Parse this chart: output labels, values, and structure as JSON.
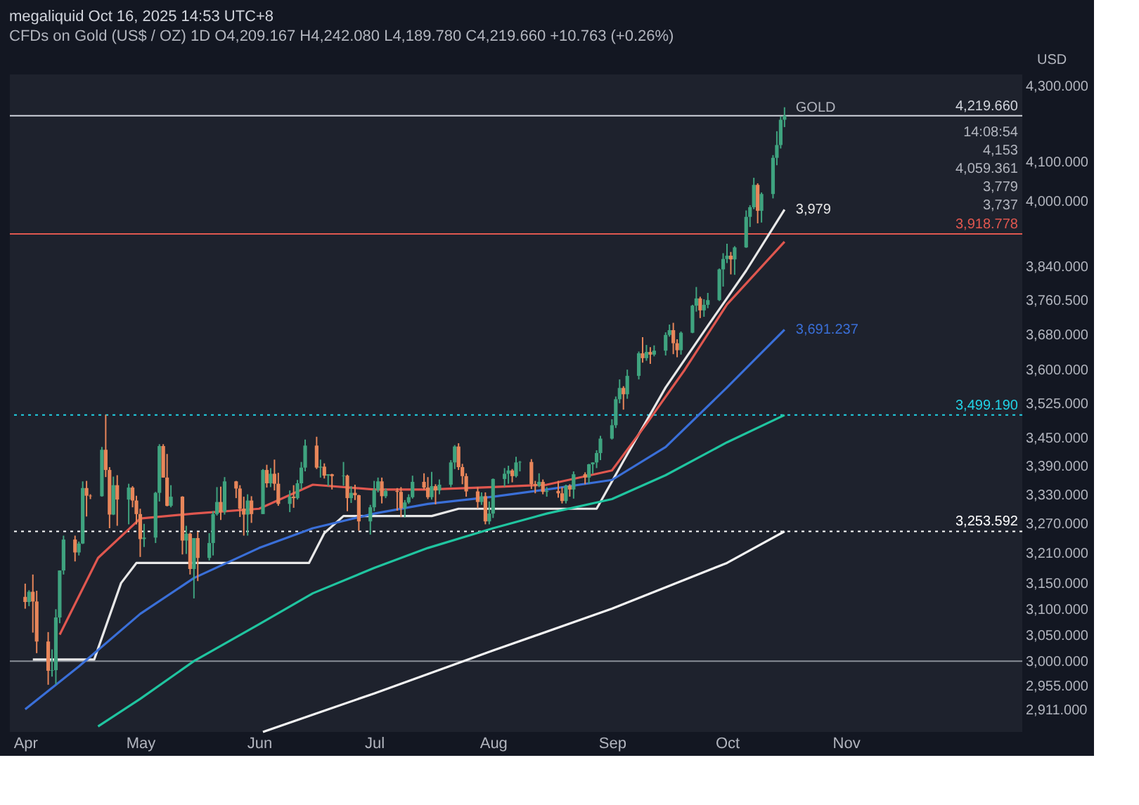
{
  "chart_data": {
    "type": "candlestick",
    "title": "megaliquid Oct 16, 2025 14:53 UTC+8",
    "subtitle": "CFDs on Gold (US$ / OZ)  1D  O4,209.167 H4,242.080 L4,189.780 C4,219.660 +10.763 (+0.26%)",
    "ylabel": "USD",
    "x": [
      "2025-04-01",
      "2025-04-02",
      "2025-04-03",
      "2025-04-04",
      "2025-04-07",
      "2025-04-08",
      "2025-04-09",
      "2025-04-10",
      "2025-04-11",
      "2025-04-14",
      "2025-04-15",
      "2025-04-16",
      "2025-04-17",
      "2025-04-18",
      "2025-04-21",
      "2025-04-22",
      "2025-04-23",
      "2025-04-24",
      "2025-04-25",
      "2025-04-28",
      "2025-04-29",
      "2025-04-30",
      "2025-05-01",
      "2025-05-02",
      "2025-05-05",
      "2025-05-06",
      "2025-05-07",
      "2025-05-08",
      "2025-05-09",
      "2025-05-12",
      "2025-05-13",
      "2025-05-14",
      "2025-05-15",
      "2025-05-16",
      "2025-05-19",
      "2025-05-20",
      "2025-05-21",
      "2025-05-22",
      "2025-05-23",
      "2025-05-26",
      "2025-05-27",
      "2025-05-28",
      "2025-05-29",
      "2025-05-30",
      "2025-06-02",
      "2025-06-03",
      "2025-06-04",
      "2025-06-05",
      "2025-06-06",
      "2025-06-09",
      "2025-06-10",
      "2025-06-11",
      "2025-06-12",
      "2025-06-13",
      "2025-06-16",
      "2025-06-17",
      "2025-06-18",
      "2025-06-19",
      "2025-06-20",
      "2025-06-23",
      "2025-06-24",
      "2025-06-25",
      "2025-06-26",
      "2025-06-27",
      "2025-06-30",
      "2025-07-01",
      "2025-07-02",
      "2025-07-03",
      "2025-07-04",
      "2025-07-07",
      "2025-07-08",
      "2025-07-09",
      "2025-07-10",
      "2025-07-11",
      "2025-07-14",
      "2025-07-15",
      "2025-07-16",
      "2025-07-17",
      "2025-07-18",
      "2025-07-21",
      "2025-07-22",
      "2025-07-23",
      "2025-07-24",
      "2025-07-25",
      "2025-07-28",
      "2025-07-29",
      "2025-07-30",
      "2025-07-31",
      "2025-08-01",
      "2025-08-04",
      "2025-08-05",
      "2025-08-06",
      "2025-08-07",
      "2025-08-08",
      "2025-08-11",
      "2025-08-12",
      "2025-08-13",
      "2025-08-14",
      "2025-08-15",
      "2025-08-18",
      "2025-08-19",
      "2025-08-20",
      "2025-08-21",
      "2025-08-22",
      "2025-08-25",
      "2025-08-26",
      "2025-08-27",
      "2025-08-28",
      "2025-08-29",
      "2025-09-01",
      "2025-09-02",
      "2025-09-03",
      "2025-09-04",
      "2025-09-05",
      "2025-09-08",
      "2025-09-09",
      "2025-09-10",
      "2025-09-11",
      "2025-09-12",
      "2025-09-15",
      "2025-09-16",
      "2025-09-17",
      "2025-09-18",
      "2025-09-19",
      "2025-09-22",
      "2025-09-23",
      "2025-09-24",
      "2025-09-25",
      "2025-09-26",
      "2025-09-29",
      "2025-09-30",
      "2025-10-01",
      "2025-10-02",
      "2025-10-03",
      "2025-10-06",
      "2025-10-07",
      "2025-10-08",
      "2025-10-09",
      "2025-10-10",
      "2025-10-13",
      "2025-10-14",
      "2025-10-15",
      "2025-10-16"
    ],
    "ohlc": [
      [
        3123,
        3149,
        3100,
        3113
      ],
      [
        3113,
        3136,
        3105,
        3133
      ],
      [
        3133,
        3167,
        3054,
        3114
      ],
      [
        3114,
        3135,
        3015,
        3037
      ],
      [
        3037,
        3055,
        2956,
        2982
      ],
      [
        2982,
        3022,
        2971,
        2983
      ],
      [
        2983,
        3099,
        2957,
        3083
      ],
      [
        3083,
        3175,
        3072,
        3175
      ],
      [
        3175,
        3245,
        3167,
        3237
      ],
      [
        3237,
        3245,
        3193,
        3211
      ],
      [
        3211,
        3233,
        3205,
        3229
      ],
      [
        3229,
        3357,
        3228,
        3343
      ],
      [
        3343,
        3358,
        3284,
        3327
      ],
      [
        3327,
        3330,
        3320,
        3326
      ],
      [
        3326,
        3430,
        3325,
        3424
      ],
      [
        3424,
        3500,
        3366,
        3381
      ],
      [
        3381,
        3387,
        3260,
        3288
      ],
      [
        3288,
        3367,
        3287,
        3349
      ],
      [
        3349,
        3370,
        3265,
        3319
      ],
      [
        3319,
        3352,
        3268,
        3344
      ],
      [
        3344,
        3347,
        3303,
        3317
      ],
      [
        3317,
        3327,
        3268,
        3289
      ],
      [
        3289,
        3300,
        3202,
        3238
      ],
      [
        3238,
        3269,
        3222,
        3241
      ],
      [
        3241,
        3335,
        3230,
        3333
      ],
      [
        3333,
        3436,
        3315,
        3432
      ],
      [
        3432,
        3436,
        3365,
        3365
      ],
      [
        3365,
        3415,
        3305,
        3306
      ],
      [
        3306,
        3349,
        3303,
        3325
      ],
      [
        3325,
        3326,
        3207,
        3235
      ],
      [
        3235,
        3265,
        3208,
        3249
      ],
      [
        3249,
        3251,
        3167,
        3178
      ],
      [
        3178,
        3240,
        3120,
        3240
      ],
      [
        3240,
        3253,
        3154,
        3200
      ],
      [
        3200,
        3250,
        3195,
        3230
      ],
      [
        3230,
        3295,
        3205,
        3289
      ],
      [
        3289,
        3345,
        3286,
        3314
      ],
      [
        3314,
        3346,
        3277,
        3294
      ],
      [
        3294,
        3366,
        3288,
        3357
      ],
      [
        3357,
        3358,
        3322,
        3342
      ],
      [
        3342,
        3349,
        3283,
        3300
      ],
      [
        3300,
        3325,
        3245,
        3288
      ],
      [
        3288,
        3330,
        3245,
        3317
      ],
      [
        3317,
        3326,
        3271,
        3289
      ],
      [
        3289,
        3383,
        3289,
        3381
      ],
      [
        3381,
        3392,
        3344,
        3353
      ],
      [
        3353,
        3385,
        3345,
        3373
      ],
      [
        3373,
        3403,
        3338,
        3352
      ],
      [
        3352,
        3375,
        3306,
        3310
      ],
      [
        3310,
        3338,
        3293,
        3325
      ],
      [
        3325,
        3349,
        3302,
        3322
      ],
      [
        3322,
        3360,
        3319,
        3353
      ],
      [
        3353,
        3398,
        3340,
        3386
      ],
      [
        3386,
        3446,
        3378,
        3433
      ],
      [
        3433,
        3452,
        3383,
        3386
      ],
      [
        3386,
        3403,
        3365,
        3388
      ],
      [
        3388,
        3395,
        3363,
        3369
      ],
      [
        3369,
        3372,
        3347,
        3372
      ],
      [
        3372,
        3373,
        3340,
        3368
      ],
      [
        3368,
        3398,
        3348,
        3369
      ],
      [
        3369,
        3371,
        3295,
        3322
      ],
      [
        3322,
        3347,
        3312,
        3333
      ],
      [
        3333,
        3350,
        3318,
        3328
      ],
      [
        3328,
        3329,
        3255,
        3274
      ],
      [
        3274,
        3308,
        3247,
        3303
      ],
      [
        3303,
        3358,
        3295,
        3339
      ],
      [
        3339,
        3365,
        3334,
        3357
      ],
      [
        3357,
        3365,
        3311,
        3326
      ],
      [
        3326,
        3342,
        3322,
        3337
      ],
      [
        3337,
        3343,
        3296,
        3335
      ],
      [
        3335,
        3345,
        3283,
        3301
      ],
      [
        3301,
        3318,
        3282,
        3313
      ],
      [
        3313,
        3330,
        3310,
        3324
      ],
      [
        3324,
        3369,
        3321,
        3356
      ],
      [
        3356,
        3374,
        3340,
        3344
      ],
      [
        3344,
        3366,
        3320,
        3324
      ],
      [
        3324,
        3377,
        3319,
        3347
      ],
      [
        3347,
        3351,
        3309,
        3338
      ],
      [
        3338,
        3361,
        3330,
        3350
      ],
      [
        3350,
        3402,
        3345,
        3397
      ],
      [
        3397,
        3434,
        3383,
        3431
      ],
      [
        3431,
        3438,
        3381,
        3387
      ],
      [
        3387,
        3394,
        3351,
        3368
      ],
      [
        3368,
        3374,
        3325,
        3336
      ],
      [
        3336,
        3345,
        3301,
        3314
      ],
      [
        3314,
        3334,
        3308,
        3326
      ],
      [
        3326,
        3334,
        3268,
        3274
      ],
      [
        3274,
        3315,
        3268,
        3290
      ],
      [
        3290,
        3363,
        3281,
        3362
      ],
      [
        3362,
        3385,
        3346,
        3373
      ],
      [
        3373,
        3390,
        3352,
        3380
      ],
      [
        3380,
        3383,
        3355,
        3368
      ],
      [
        3368,
        3409,
        3365,
        3397
      ],
      [
        3397,
        3400,
        3378,
        3398
      ],
      [
        3398,
        3404,
        3341,
        3351
      ],
      [
        3351,
        3358,
        3332,
        3348
      ],
      [
        3348,
        3374,
        3345,
        3356
      ],
      [
        3356,
        3361,
        3330,
        3335
      ],
      [
        3335,
        3345,
        3325,
        3337
      ],
      [
        3337,
        3358,
        3323,
        3332
      ],
      [
        3332,
        3345,
        3311,
        3316
      ],
      [
        3316,
        3350,
        3311,
        3348
      ],
      [
        3348,
        3351,
        3325,
        3340
      ],
      [
        3340,
        3378,
        3321,
        3372
      ],
      [
        3372,
        3376,
        3351,
        3365
      ],
      [
        3365,
        3394,
        3352,
        3393
      ],
      [
        3393,
        3397,
        3373,
        3397
      ],
      [
        3397,
        3423,
        3385,
        3417
      ],
      [
        3417,
        3454,
        3402,
        3448
      ],
      [
        3448,
        3490,
        3446,
        3477
      ],
      [
        3477,
        3540,
        3471,
        3534
      ],
      [
        3534,
        3578,
        3525,
        3559
      ],
      [
        3559,
        3563,
        3511,
        3545
      ],
      [
        3545,
        3600,
        3535,
        3586
      ],
      [
        3586,
        3641,
        3578,
        3637
      ],
      [
        3637,
        3674,
        3616,
        3626
      ],
      [
        3626,
        3656,
        3620,
        3640
      ],
      [
        3640,
        3651,
        3613,
        3634
      ],
      [
        3634,
        3655,
        3630,
        3643
      ],
      [
        3643,
        3685,
        3632,
        3679
      ],
      [
        3679,
        3703,
        3675,
        3690
      ],
      [
        3690,
        3707,
        3635,
        3660
      ],
      [
        3660,
        3669,
        3628,
        3644
      ],
      [
        3644,
        3687,
        3634,
        3684
      ],
      [
        3684,
        3749,
        3683,
        3747
      ],
      [
        3747,
        3791,
        3733,
        3764
      ],
      [
        3764,
        3768,
        3718,
        3736
      ],
      [
        3736,
        3762,
        3721,
        3749
      ],
      [
        3749,
        3777,
        3741,
        3760
      ],
      [
        3760,
        3835,
        3758,
        3833
      ],
      [
        3833,
        3872,
        3792,
        3858
      ],
      [
        3858,
        3895,
        3848,
        3866
      ],
      [
        3866,
        3875,
        3821,
        3857
      ],
      [
        3857,
        3889,
        3820,
        3886
      ],
      [
        3886,
        3977,
        3885,
        3961
      ],
      [
        3961,
        3990,
        3936,
        3985
      ],
      [
        3985,
        4059,
        3980,
        4041
      ],
      [
        4041,
        4045,
        3945,
        3976
      ],
      [
        3976,
        4022,
        3947,
        4018
      ],
      [
        4018,
        4117,
        4007,
        4110
      ],
      [
        4110,
        4179,
        4091,
        4143
      ],
      [
        4143,
        4218,
        4134,
        4209
      ],
      [
        4209.167,
        4242.08,
        4189.78,
        4219.66
      ]
    ],
    "colors": [
      "#e8865a",
      "#3fa37f",
      "#e8865a",
      "#e8865a",
      "#e8865a",
      "#3fa37f",
      "#3fa37f",
      "#3fa37f",
      "#3fa37f",
      "#e8865a",
      "#3fa37f",
      "#3fa37f",
      "#e8865a",
      "#e8865a",
      "#3fa37f",
      "#e8865a",
      "#e8865a",
      "#3fa37f",
      "#e8865a",
      "#3fa37f",
      "#e8865a",
      "#e8865a",
      "#e8865a",
      "#3fa37f",
      "#3fa37f",
      "#3fa37f",
      "#e8865a",
      "#e8865a",
      "#3fa37f",
      "#e8865a",
      "#3fa37f",
      "#e8865a",
      "#3fa37f",
      "#e8865a",
      "#3fa37f",
      "#3fa37f",
      "#3fa37f",
      "#e8865a",
      "#3fa37f",
      "#e8865a",
      "#e8865a",
      "#e8865a",
      "#3fa37f",
      "#e8865a",
      "#3fa37f",
      "#e8865a",
      "#3fa37f",
      "#e8865a",
      "#e8865a",
      "#3fa37f",
      "#e8865a",
      "#3fa37f",
      "#3fa37f",
      "#3fa37f",
      "#e8865a",
      "#3fa37f",
      "#e8865a",
      "#3fa37f",
      "#e8865a",
      "#3fa37f",
      "#e8865a",
      "#3fa37f",
      "#e8865a",
      "#e8865a",
      "#3fa37f",
      "#3fa37f",
      "#3fa37f",
      "#e8865a",
      "#3fa37f",
      "#e8865a",
      "#e8865a",
      "#3fa37f",
      "#3fa37f",
      "#3fa37f",
      "#e8865a",
      "#e8865a",
      "#3fa37f",
      "#e8865a",
      "#3fa37f",
      "#3fa37f",
      "#3fa37f",
      "#e8865a",
      "#e8865a",
      "#e8865a",
      "#e8865a",
      "#3fa37f",
      "#e8865a",
      "#3fa37f",
      "#3fa37f",
      "#3fa37f",
      "#3fa37f",
      "#e8865a",
      "#3fa37f",
      "#3fa37f",
      "#e8865a",
      "#e8865a",
      "#3fa37f",
      "#e8865a",
      "#3fa37f",
      "#e8865a",
      "#e8865a",
      "#3fa37f",
      "#e8865a",
      "#3fa37f",
      "#e8865a",
      "#3fa37f",
      "#3fa37f",
      "#3fa37f",
      "#3fa37f",
      "#3fa37f",
      "#3fa37f",
      "#3fa37f",
      "#e8865a",
      "#3fa37f",
      "#3fa37f",
      "#e8865a",
      "#3fa37f",
      "#e8865a",
      "#3fa37f",
      "#3fa37f",
      "#3fa37f",
      "#e8865a",
      "#e8865a",
      "#3fa37f",
      "#3fa37f",
      "#3fa37f",
      "#e8865a",
      "#3fa37f",
      "#3fa37f",
      "#3fa37f",
      "#3fa37f",
      "#3fa37f",
      "#e8865a",
      "#3fa37f",
      "#3fa37f",
      "#3fa37f",
      "#3fa37f",
      "#e8865a",
      "#3fa37f",
      "#3fa37f",
      "#3fa37f",
      "#3fa37f",
      "#3fa37f"
    ],
    "series": [
      {
        "type": "line",
        "color": "#e8e8e8",
        "x": [
          "2025-04-03",
          "2025-04-19",
          "2025-04-26",
          "2025-04-30",
          "2025-06-14",
          "2025-06-18",
          "2025-06-23",
          "2025-07-16",
          "2025-07-23",
          "2025-08-28",
          "2025-09-04",
          "2025-09-15",
          "2025-09-26",
          "2025-10-06",
          "2025-10-16"
        ],
        "values": [
          3003,
          3003,
          3150,
          3190,
          3190,
          3250,
          3285,
          3285,
          3300,
          3300,
          3400,
          3560,
          3700,
          3830,
          3979
        ],
        "value_labels": [
          null,
          null,
          null,
          null,
          null,
          null,
          null,
          null,
          null,
          null,
          null,
          null,
          null,
          null,
          "3,979"
        ]
      },
      {
        "type": "line",
        "color": "#e0574f",
        "x": [
          "2025-04-10",
          "2025-04-20",
          "2025-05-01",
          "2025-05-15",
          "2025-06-01",
          "2025-06-15",
          "2025-07-01",
          "2025-07-15",
          "2025-08-01",
          "2025-08-15",
          "2025-09-01",
          "2025-09-10",
          "2025-09-20",
          "2025-10-01",
          "2025-10-16"
        ],
        "values": [
          3050,
          3200,
          3280,
          3290,
          3300,
          3350,
          3340,
          3340,
          3345,
          3350,
          3380,
          3480,
          3600,
          3750,
          3900
        ]
      },
      {
        "type": "line",
        "color": "#3a6fd8",
        "x": [
          "2025-04-01",
          "2025-04-15",
          "2025-05-01",
          "2025-05-15",
          "2025-06-01",
          "2025-06-15",
          "2025-07-01",
          "2025-07-15",
          "2025-08-01",
          "2025-08-15",
          "2025-09-01",
          "2025-09-15",
          "2025-10-01",
          "2025-10-16"
        ],
        "values": [
          2911,
          2990,
          3090,
          3160,
          3220,
          3260,
          3290,
          3310,
          3325,
          3340,
          3360,
          3430,
          3560,
          3691.237
        ],
        "value_labels": [
          null,
          null,
          null,
          null,
          null,
          null,
          null,
          null,
          null,
          null,
          null,
          null,
          null,
          "3,691.237"
        ]
      },
      {
        "type": "line",
        "color": "#20c5a0",
        "x": [
          "2025-04-20",
          "2025-05-01",
          "2025-05-15",
          "2025-06-01",
          "2025-06-15",
          "2025-07-01",
          "2025-07-15",
          "2025-08-01",
          "2025-08-15",
          "2025-09-01",
          "2025-09-15",
          "2025-10-01",
          "2025-10-16"
        ],
        "values": [
          2880,
          2930,
          3000,
          3070,
          3130,
          3180,
          3220,
          3260,
          3290,
          3320,
          3370,
          3440,
          3499.19
        ]
      },
      {
        "type": "line",
        "color": "#f5f5f5",
        "x": [
          "2025-06-02",
          "2025-07-01",
          "2025-08-01",
          "2025-09-01",
          "2025-10-01",
          "2025-10-16"
        ],
        "values": [
          2870,
          2940,
          3020,
          3100,
          3190,
          3253.592
        ]
      }
    ],
    "ref_lines": [
      {
        "axis": "y",
        "value": 4219.66,
        "label": "4,219.660",
        "color": "#d1d4dc",
        "line_style": "solid"
      },
      {
        "axis": "y",
        "value": 3918.778,
        "label": "3,918.778",
        "color": "#e0574f",
        "line_style": "solid"
      },
      {
        "axis": "y",
        "value": 3499.19,
        "label": "3,499.190",
        "color": "#22d3e6",
        "line_style": "dotted"
      },
      {
        "axis": "y",
        "value": 3253.592,
        "label": "3,253.592",
        "color": "#ffffff",
        "line_style": "dotted"
      },
      {
        "axis": "y",
        "value": 3000,
        "color": "#8a8f98",
        "line_style": "solid"
      }
    ],
    "annotations": [
      {
        "text": "GOLD",
        "x": "2025-10-16",
        "y": 4219.66
      },
      "14:08:54",
      "4,153",
      "4,059.361",
      "3,779",
      "3,737"
    ],
    "xlim": [
      "2025-03-28",
      "2025-12-17"
    ],
    "xticks": [
      {
        "value": "2025-04-01",
        "label": "Apr"
      },
      {
        "value": "2025-05-01",
        "label": "May"
      },
      {
        "value": "2025-06-01",
        "label": "Jun"
      },
      {
        "value": "2025-07-01",
        "label": "Jul"
      },
      {
        "value": "2025-08-01",
        "label": "Aug"
      },
      {
        "value": "2025-09-01",
        "label": "Sep"
      },
      {
        "value": "2025-10-01",
        "label": "Oct"
      },
      {
        "value": "2025-11-01",
        "label": "Nov"
      }
    ],
    "ylim": [
      2870,
      4330
    ],
    "yticks": [
      {
        "value": 2911,
        "label": "2,911.000"
      },
      {
        "value": 2955,
        "label": "2,955.000"
      },
      {
        "value": 3000,
        "label": "3,000.000"
      },
      {
        "value": 3050,
        "label": "3,050.000"
      },
      {
        "value": 3100,
        "label": "3,100.000"
      },
      {
        "value": 3150,
        "label": "3,150.000"
      },
      {
        "value": 3210,
        "label": "3,210.000"
      },
      {
        "value": 3270,
        "label": "3,270.000"
      },
      {
        "value": 3330,
        "label": "3,330.000"
      },
      {
        "value": 3390,
        "label": "3,390.000"
      },
      {
        "value": 3450,
        "label": "3,450.000"
      },
      {
        "value": 3525,
        "label": "3,525.000"
      },
      {
        "value": 3600,
        "label": "3,600.000"
      },
      {
        "value": 3680,
        "label": "3,680.000"
      },
      {
        "value": 3760.5,
        "label": "3,760.500"
      },
      {
        "value": 3840,
        "label": "3,840.000"
      },
      {
        "value": 4000,
        "label": "4,000.000"
      },
      {
        "value": 4100,
        "label": "4,100.000"
      },
      {
        "value": 4300,
        "label": "4,300.000"
      }
    ],
    "log": true,
    "grid": false
  }
}
